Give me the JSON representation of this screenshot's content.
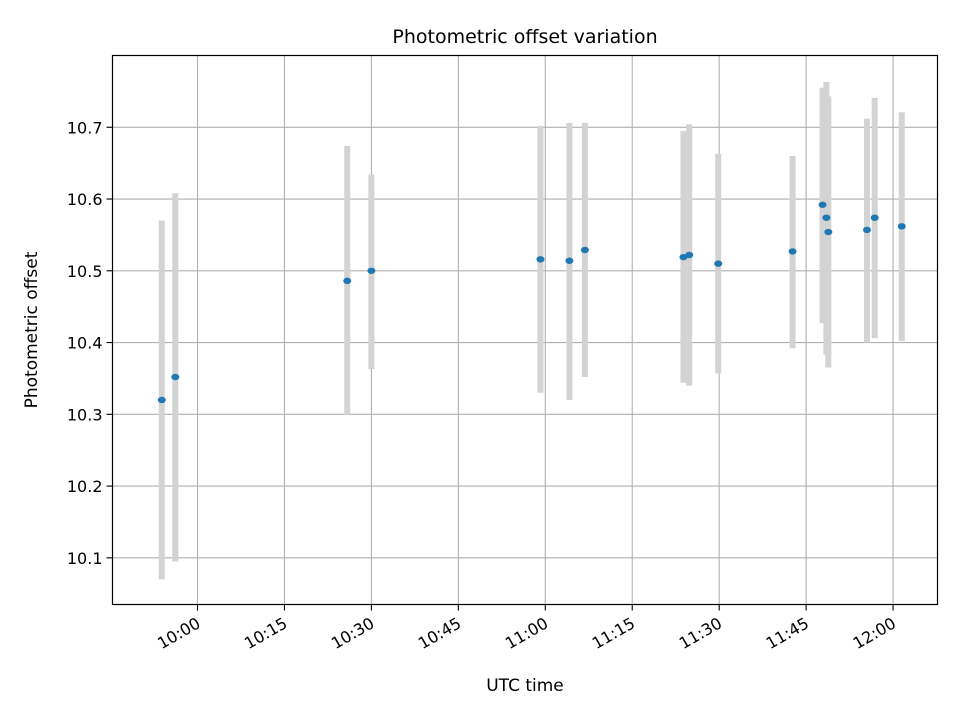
{
  "chart_data": {
    "type": "scatter",
    "title": "Photometric offset variation",
    "xlabel": "UTC time",
    "ylabel": "Photometric offset",
    "x_tick_labels": [
      "10:00",
      "10:15",
      "10:30",
      "10:45",
      "11:00",
      "11:15",
      "11:30",
      "11:45",
      "12:00"
    ],
    "x_ticks": [
      "10:00",
      "10:15",
      "10:30",
      "10:45",
      "11:00",
      "11:15",
      "11:30",
      "11:45",
      "12:00"
    ],
    "xlim": [
      "09:45:20",
      "12:07:40"
    ],
    "y_tick_labels": [
      "10.1",
      "10.2",
      "10.3",
      "10.4",
      "10.5",
      "10.6",
      "10.7"
    ],
    "y_ticks": [
      10.1,
      10.2,
      10.3,
      10.4,
      10.5,
      10.6,
      10.7
    ],
    "ylim": [
      10.035,
      10.8
    ],
    "grid": true,
    "point_color": "#1f77b4",
    "errorbar_color": "#d3d3d3",
    "points": [
      {
        "t": "09:53:50",
        "y": 10.32,
        "lo": 10.07,
        "hi": 10.57
      },
      {
        "t": "09:56:10",
        "y": 10.352,
        "lo": 10.095,
        "hi": 10.608
      },
      {
        "t": "10:25:50",
        "y": 10.486,
        "lo": 10.3,
        "hi": 10.674
      },
      {
        "t": "10:30:00",
        "y": 10.5,
        "lo": 10.363,
        "hi": 10.634
      },
      {
        "t": "10:59:10",
        "y": 10.516,
        "lo": 10.33,
        "hi": 10.702
      },
      {
        "t": "11:04:10",
        "y": 10.514,
        "lo": 10.32,
        "hi": 10.706
      },
      {
        "t": "11:06:50",
        "y": 10.529,
        "lo": 10.352,
        "hi": 10.706
      },
      {
        "t": "11:23:50",
        "y": 10.519,
        "lo": 10.344,
        "hi": 10.695
      },
      {
        "t": "11:24:50",
        "y": 10.522,
        "lo": 10.34,
        "hi": 10.704
      },
      {
        "t": "11:29:50",
        "y": 10.51,
        "lo": 10.357,
        "hi": 10.663
      },
      {
        "t": "11:42:40",
        "y": 10.527,
        "lo": 10.392,
        "hi": 10.66
      },
      {
        "t": "11:47:50",
        "y": 10.592,
        "lo": 10.427,
        "hi": 10.755
      },
      {
        "t": "11:48:30",
        "y": 10.574,
        "lo": 10.383,
        "hi": 10.763
      },
      {
        "t": "11:48:50",
        "y": 10.554,
        "lo": 10.365,
        "hi": 10.743
      },
      {
        "t": "11:55:30",
        "y": 10.557,
        "lo": 10.4,
        "hi": 10.712
      },
      {
        "t": "11:56:50",
        "y": 10.574,
        "lo": 10.406,
        "hi": 10.741
      },
      {
        "t": "12:01:30",
        "y": 10.562,
        "lo": 10.402,
        "hi": 10.721
      }
    ]
  }
}
